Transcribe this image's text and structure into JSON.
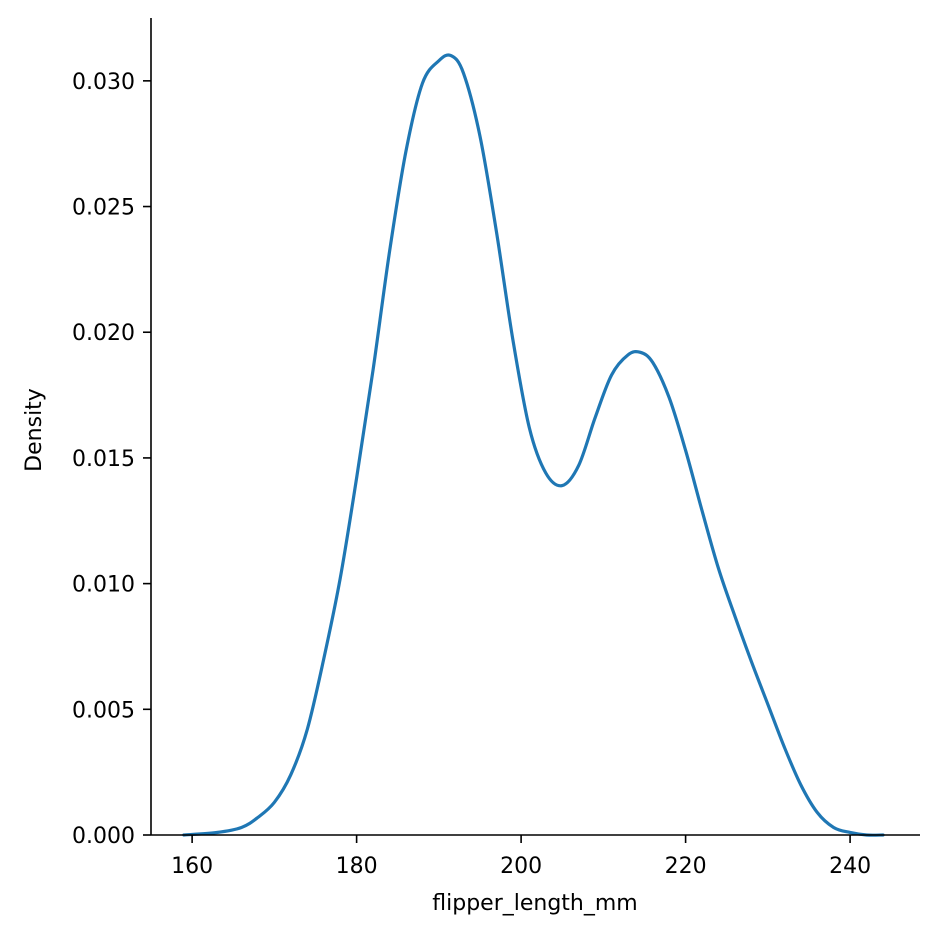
{
  "chart_data": {
    "type": "line",
    "title": "",
    "xlabel": "flipper_length_mm",
    "ylabel": "Density",
    "xlim": [
      155,
      248.5
    ],
    "ylim": [
      0,
      0.0325
    ],
    "xticks": [
      160,
      180,
      200,
      220,
      240
    ],
    "xtick_labels": [
      "160",
      "180",
      "200",
      "220",
      "240"
    ],
    "yticks": [
      0,
      0.005,
      0.01,
      0.015,
      0.02,
      0.025,
      0.03
    ],
    "ytick_labels": [
      "0.000",
      "0.005",
      "0.010",
      "0.015",
      "0.020",
      "0.025",
      "0.030"
    ],
    "grid": false,
    "spines": [
      "left",
      "bottom"
    ],
    "series": [
      {
        "color": "#1f77b4",
        "x": [
          159,
          163,
          166,
          168,
          170,
          172,
          174,
          176,
          178,
          180,
          182,
          184,
          186,
          188,
          190,
          191.5,
          193,
          195,
          197,
          199,
          201,
          203,
          205,
          207,
          209,
          211,
          213,
          214.5,
          216,
          218,
          220,
          222,
          224,
          226,
          228,
          230,
          232,
          234,
          236,
          238,
          240,
          242,
          244
        ],
        "y": [
          0.0,
          0.0001,
          0.0003,
          0.0007,
          0.0013,
          0.0024,
          0.0042,
          0.007,
          0.0102,
          0.0142,
          0.0185,
          0.0232,
          0.0272,
          0.0299,
          0.0308,
          0.031,
          0.0303,
          0.0278,
          0.024,
          0.0197,
          0.0162,
          0.0144,
          0.0139,
          0.0147,
          0.0166,
          0.0183,
          0.0191,
          0.0192,
          0.0188,
          0.0174,
          0.0153,
          0.0129,
          0.0106,
          0.0087,
          0.0069,
          0.0052,
          0.0035,
          0.002,
          0.0009,
          0.0003,
          0.0001,
          0.0,
          0.0
        ]
      }
    ]
  }
}
